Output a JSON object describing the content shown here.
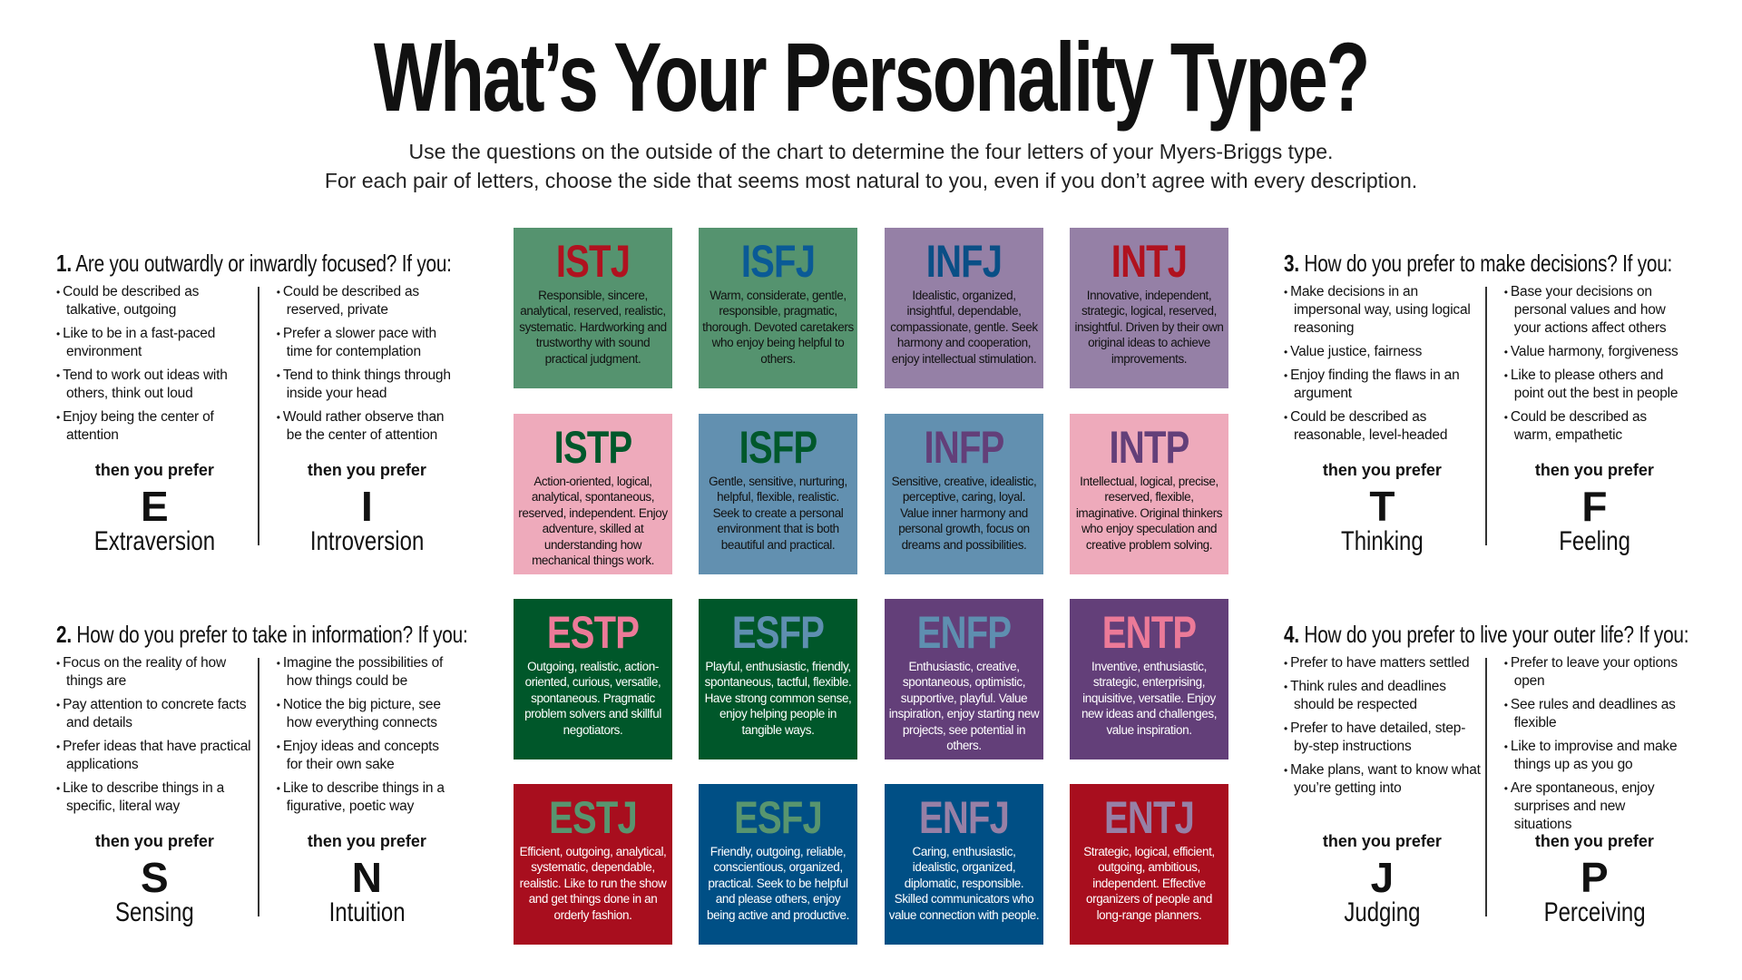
{
  "title": "What’s Your Personality Type?",
  "subtitle": [
    "Use the questions on the outside of the chart to determine the four letters of your Myers-Briggs type.",
    "For each pair of letters, choose the side that seems most natural to you, even if you don’t agree with every description."
  ],
  "sections": [
    {
      "number": "1.",
      "question": "Are you outwardly or inwardly focused? If you:",
      "left": {
        "bullets": [
          "Could be described as talkative, outgoing",
          "Like to be in a fast-paced environment",
          "Tend to work out ideas with others, think out loud",
          "Enjoy being the center of attention"
        ],
        "prefer": "then you prefer",
        "letter": "E",
        "word": "Extraversion"
      },
      "right": {
        "bullets": [
          "Could be described as reserved, private",
          "Prefer a slower pace with time for contemplation",
          "Tend to think things through inside your head",
          "Would rather observe than be the center of attention"
        ],
        "prefer": "then you prefer",
        "letter": "I",
        "word": "Introversion"
      }
    },
    {
      "number": "2.",
      "question": "How do you prefer to take in information? If you:",
      "left": {
        "bullets": [
          "Focus on the reality of how things are",
          "Pay attention to concrete facts and details",
          "Prefer ideas that have practical applications",
          "Like to describe things in a specific, literal way"
        ],
        "prefer": "then you prefer",
        "letter": "S",
        "word": "Sensing"
      },
      "right": {
        "bullets": [
          "Imagine the possibilities of how things could be",
          "Notice the big picture, see how everything connects",
          "Enjoy ideas and concepts for their own sake",
          "Like to describe things in a figurative, poetic way"
        ],
        "prefer": "then you prefer",
        "letter": "N",
        "word": "Intuition"
      }
    },
    {
      "number": "3.",
      "question": "How do you prefer to make decisions? If you:",
      "left": {
        "bullets": [
          "Make decisions in an impersonal way, using logical reasoning",
          "Value justice, fairness",
          "Enjoy finding the flaws in an argument",
          "Could be described as reasonable, level-headed"
        ],
        "prefer": "then you prefer",
        "letter": "T",
        "word": "Thinking"
      },
      "right": {
        "bullets": [
          "Base your decisions on personal values and how your actions affect others",
          "Value harmony, forgiveness",
          "Like to please others and point out the best in people",
          "Could be described as warm, empathetic"
        ],
        "prefer": "then you prefer",
        "letter": "F",
        "word": "Feeling"
      }
    },
    {
      "number": "4.",
      "question": "How do you prefer to live your outer life? If you:",
      "left": {
        "bullets": [
          "Prefer to have matters settled",
          "Think rules and deadlines should be respected",
          "Prefer to have detailed, step-by-step instructions",
          "Make plans, want to know what you’re getting into"
        ],
        "prefer": "then you prefer",
        "letter": "J",
        "word": "Judging"
      },
      "right": {
        "bullets": [
          "Prefer to leave your options open",
          "See rules and deadlines as flexible",
          "Like to improvise and make things up as you go",
          "Are spontaneous, enjoy surprises and new situations"
        ],
        "prefer": "then you prefer",
        "letter": "P",
        "word": "Perceiving"
      }
    }
  ],
  "types": [
    {
      "name": "ISTJ",
      "bg": "#55936f",
      "fg": "#b0121f",
      "text": "#111111",
      "desc": "Responsible, sincere, analytical, reserved, realistic, systematic. Hardworking and trustworthy with sound practical judgment."
    },
    {
      "name": "ISFJ",
      "bg": "#55936f",
      "fg": "#0a5a96",
      "text": "#111111",
      "desc": "Warm, considerate, gentle, responsible, pragmatic, thorough. Devoted caretakers who enjoy being helpful to others."
    },
    {
      "name": "INFJ",
      "bg": "#9580a6",
      "fg": "#0a4f86",
      "text": "#111111",
      "desc": "Idealistic, organized, insightful, dependable, compassionate, gentle. Seek harmony and cooperation, enjoy intellectual stimulation."
    },
    {
      "name": "INTJ",
      "bg": "#9580a6",
      "fg": "#b0121f",
      "text": "#111111",
      "desc": "Innovative, independent, strategic, logical, reserved, insightful. Driven by their own original ideas to achieve improvements."
    },
    {
      "name": "ISTP",
      "bg": "#eeaabb",
      "fg": "#00582b",
      "text": "#111111",
      "desc": "Action-oriented, logical, analytical, spontaneous, reserved, independent. Enjoy adventure, skilled at understanding how mechanical things work."
    },
    {
      "name": "ISFP",
      "bg": "#6290b0",
      "fg": "#00582b",
      "text": "#111111",
      "desc": "Gentle, sensitive, nurturing, helpful, flexible, realistic. Seek to create a personal environment that is both beautiful and practical."
    },
    {
      "name": "INFP",
      "bg": "#6290b0",
      "fg": "#633f79",
      "text": "#111111",
      "desc": "Sensitive, creative, idealistic, perceptive, caring, loyal. Value inner harmony and personal growth, focus on dreams and possibilities."
    },
    {
      "name": "INTP",
      "bg": "#eeaabb",
      "fg": "#633f79",
      "text": "#111111",
      "desc": "Intellectual, logical, precise, reserved, flexible, imaginative. Original thinkers who enjoy speculation and creative problem solving."
    },
    {
      "name": "ESTP",
      "bg": "#00572a",
      "fg": "#ec7a98",
      "text": "#ffffff",
      "desc": "Outgoing, realistic, action-oriented, curious, versatile, spontaneous. Pragmatic problem solvers and skillful negotiators."
    },
    {
      "name": "ESFP",
      "bg": "#00572a",
      "fg": "#5e8fb0",
      "text": "#ffffff",
      "desc": "Playful, enthusiastic, friendly, spontaneous, tactful, flexible. Have strong common sense, enjoy helping people in tangible ways."
    },
    {
      "name": "ENFP",
      "bg": "#633f79",
      "fg": "#5e8fb0",
      "text": "#ffffff",
      "desc": "Enthusiastic, creative, spontaneous, optimistic, supportive, playful. Value inspiration, enjoy starting new projects, see potential in others."
    },
    {
      "name": "ENTP",
      "bg": "#633f79",
      "fg": "#ec7a98",
      "text": "#ffffff",
      "desc": "Inventive, enthusiastic, strategic, enterprising, inquisitive, versatile. Enjoy new ideas and challenges, value inspiration."
    },
    {
      "name": "ESTJ",
      "bg": "#a80e1e",
      "fg": "#58956f",
      "text": "#ffffff",
      "desc": "Efficient, outgoing, analytical, systematic, dependable, realistic. Like to run the show and get things done in an orderly fashion."
    },
    {
      "name": "ESFJ",
      "bg": "#004f85",
      "fg": "#58956f",
      "text": "#ffffff",
      "desc": "Friendly, outgoing, reliable, conscientious, organized, practical. Seek to be helpful and please others, enjoy being active and productive."
    },
    {
      "name": "ENFJ",
      "bg": "#004f85",
      "fg": "#9780a6",
      "text": "#ffffff",
      "desc": "Caring, enthusiastic, idealistic, organized, diplomatic, responsible. Skilled communicators who value connection with people."
    },
    {
      "name": "ENTJ",
      "bg": "#a80e1e",
      "fg": "#9780a6",
      "text": "#ffffff",
      "desc": "Strategic, logical, efficient, outgoing, ambitious, independent. Effective organizers of people and long-range planners."
    }
  ]
}
